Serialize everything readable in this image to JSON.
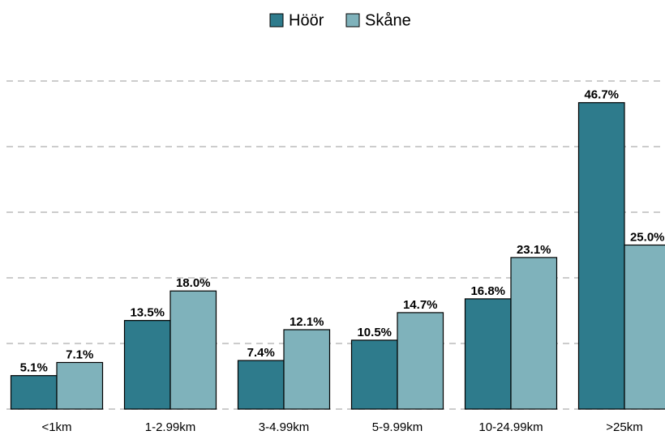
{
  "chart_data": {
    "type": "bar",
    "categories": [
      "<1km",
      "1-2.99km",
      "3-4.99km",
      "5-9.99km",
      "10-24.99km",
      ">25km"
    ],
    "series": [
      {
        "name": "Höör",
        "color": "#2e7b8c",
        "values": [
          5.1,
          13.5,
          7.4,
          10.5,
          16.8,
          46.7
        ],
        "value_labels": [
          "5.1%",
          "13.5%",
          "7.4%",
          "10.5%",
          "16.8%",
          "46.7%"
        ]
      },
      {
        "name": "Skåne",
        "color": "#7fb2bb",
        "values": [
          7.1,
          18.0,
          12.1,
          14.7,
          23.1,
          25.0
        ],
        "value_labels": [
          "7.1%",
          "18.0%",
          "12.1%",
          "14.7%",
          "23.1%",
          "25.0%"
        ]
      }
    ],
    "ylim": [
      0,
      50
    ],
    "yticks": [
      0,
      10,
      20,
      30,
      40,
      50
    ],
    "grid": true,
    "legend": "top"
  }
}
